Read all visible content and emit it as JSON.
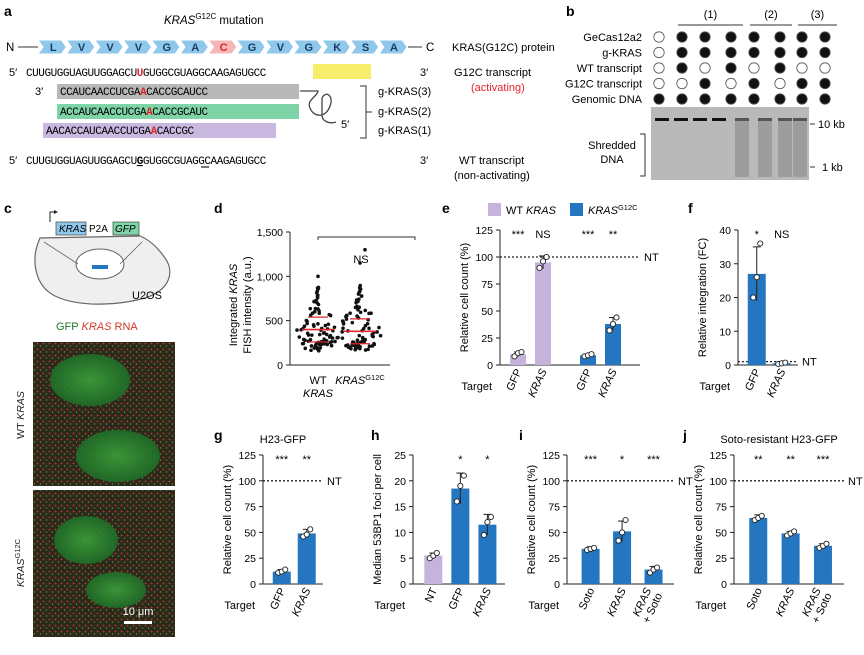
{
  "panel_labels": {
    "a": "a",
    "b": "b",
    "c": "c",
    "d": "d",
    "e": "e",
    "f": "f",
    "g": "g",
    "h": "h",
    "i": "i",
    "j": "j"
  },
  "panel_a": {
    "mutation_title": "KRAS",
    "mutation_sup": "G12C",
    "mutation_suffix": " mutation",
    "n_term": "N",
    "c_term": "C",
    "aa": [
      "L",
      "V",
      "V",
      "V",
      "G",
      "A",
      "C",
      "G",
      "V",
      "G",
      "K",
      "S",
      "A"
    ],
    "protein_label": "KRAS(G12C) protein",
    "prime5": "5′",
    "prime3": "3′",
    "seq_g12c_before": "CUUGUGGUAGUUGGAGCU",
    "seq_g12c_mut": "U",
    "seq_g12c_mid": "GUGGCGUAGG",
    "seq_g12c_pam": "CAAGAG",
    "seq_g12c_after": "UGCC",
    "g12c_label1": "G12C transcript",
    "g12c_label2": "(activating)",
    "g3_before": "CCAUCAACCUCGA",
    "g3_mut": "A",
    "g3_after": "CACCGCAUCC",
    "g2_before": "ACCAUCAACCUCGA",
    "g2_mut": "A",
    "g2_after": "CACCGCAUC",
    "g1_before": "AACACCAUCAACCUCGA",
    "g1_mut": "A",
    "g1_after": "CACCGC",
    "g3_label": "g-KRAS(3)",
    "g2_label": "g-KRAS(2)",
    "g1_label": "g-KRAS(1)",
    "seq_wt_before": "CUUGUGGUAGUUGGAGCU",
    "seq_wt_mut": "G",
    "seq_wt_after": "GUGGCGUAGGCAAGAGUGCC",
    "wt_label1": "WT transcript",
    "wt_label2": "(non-activating)"
  },
  "panel_b": {
    "group_labels": [
      "(1)",
      "(2)",
      "(3)"
    ],
    "rows": [
      {
        "label": "GeCas12a2",
        "fill": [
          0,
          1,
          1,
          1,
          1,
          1,
          1,
          1
        ]
      },
      {
        "label": "g-KRAS",
        "fill": [
          0,
          1,
          1,
          1,
          1,
          1,
          1,
          1
        ]
      },
      {
        "label": "WT transcript",
        "fill": [
          0,
          1,
          0,
          1,
          0,
          1,
          0,
          0
        ]
      },
      {
        "label": "G12C transcript",
        "fill": [
          0,
          0,
          1,
          0,
          1,
          0,
          1,
          1
        ]
      },
      {
        "label": "Genomic DNA",
        "fill": [
          1,
          1,
          1,
          1,
          1,
          1,
          1,
          1
        ]
      }
    ],
    "shredded1": "Shredded",
    "shredded2": "DNA",
    "kb10": "10 kb",
    "kb1": "1 kb"
  },
  "panel_c": {
    "construct_kras": "KRAS",
    "construct_p2a": "P2A",
    "construct_gfp": "GFP",
    "cell_label": "U2OS",
    "legend_gfp": "GFP",
    "legend_kras": "KRAS",
    "legend_rna": " RNA",
    "wt_label_a": "WT ",
    "wt_label_b": "KRAS",
    "g12c_label_a": "KRAS",
    "g12c_label_sup": "G12C",
    "scale": "10 μm"
  },
  "colors": {
    "wt": "#c5b3dc",
    "g12c": "#2476c0",
    "mut_red": "#e0252b",
    "pam_yellow": "#f6ee6a",
    "protein_blue": "#8fc8ea",
    "guide3": "#b8b8b8",
    "guide2": "#7ed3a7",
    "guide1": "#c9b8e0"
  },
  "panel_d": {
    "ylabel1": "Integrated KRAS",
    "ylabel2": "FISH intensity (a.u.)",
    "yticks": [
      "0",
      "500",
      "1,000",
      "1,500"
    ],
    "ymax": 1500,
    "cat1a": "WT",
    "cat1b": "KRAS",
    "cat2a": "KRAS",
    "cat2sup": "G12C",
    "sig": "NS",
    "means": [
      400,
      380
    ]
  },
  "chart_data": [
    {
      "panel": "e",
      "type": "bar",
      "ylabel": "Relative cell count (%)",
      "ylim": [
        0,
        125
      ],
      "yticks": [
        0,
        25,
        50,
        75,
        100,
        125
      ],
      "legend": [
        {
          "name": "WT KRAS",
          "color": "wt"
        },
        {
          "name": "KRASG12C",
          "color": "g12c"
        }
      ],
      "xlabel": "Target",
      "categories": [
        "GFP",
        "KRAS",
        "GFP",
        "KRAS"
      ],
      "values": [
        10,
        95,
        9,
        38
      ],
      "colors": [
        "wt",
        "wt",
        "g12c",
        "g12c"
      ],
      "points": [
        [
          8,
          11,
          12
        ],
        [
          90,
          96,
          100
        ],
        [
          8,
          9,
          10
        ],
        [
          32,
          38,
          44
        ]
      ],
      "errors": [
        2,
        6,
        1,
        6
      ],
      "sig": [
        "***",
        "NS",
        "***",
        "**"
      ],
      "nt": "NT",
      "nt_value": 100
    },
    {
      "panel": "f",
      "type": "bar",
      "ylabel": "Relative integration (FC)",
      "ylim": [
        0,
        40
      ],
      "yticks": [
        0,
        10,
        20,
        30,
        40
      ],
      "xlabel": "Target",
      "categories": [
        "GFP",
        "KRAS"
      ],
      "values": [
        27,
        0.5
      ],
      "colors": [
        "g12c",
        "g12c"
      ],
      "points": [
        [
          20,
          26,
          36
        ],
        [
          0.3,
          0.5,
          0.7
        ]
      ],
      "errors": [
        8,
        0.3
      ],
      "sig": [
        "*",
        "NS"
      ],
      "nt": "NT",
      "nt_value": 1
    },
    {
      "panel": "g",
      "type": "bar",
      "title": "H23-GFP",
      "ylabel": "Relative cell count (%)",
      "ylim": [
        0,
        125
      ],
      "yticks": [
        0,
        25,
        50,
        75,
        100,
        125
      ],
      "xlabel": "Target",
      "categories": [
        "GFP",
        "KRAS"
      ],
      "values": [
        12,
        49
      ],
      "colors": [
        "g12c",
        "g12c"
      ],
      "points": [
        [
          11,
          12,
          14
        ],
        [
          46,
          48,
          53
        ]
      ],
      "errors": [
        2,
        4
      ],
      "sig": [
        "***",
        "**"
      ],
      "nt": "NT",
      "nt_value": 100
    },
    {
      "panel": "h",
      "type": "bar",
      "ylabel": "Median 53BP1 foci per cell",
      "ylim": [
        0,
        25
      ],
      "yticks": [
        0,
        5,
        10,
        15,
        20,
        25
      ],
      "xlabel": "Target",
      "categories": [
        "NT",
        "GFP",
        "KRAS"
      ],
      "values": [
        5.5,
        18.5,
        11.5
      ],
      "colors": [
        "wt",
        "g12c",
        "g12c"
      ],
      "points": [
        [
          5,
          5.5,
          6
        ],
        [
          16,
          19,
          21
        ],
        [
          9.5,
          12,
          13
        ]
      ],
      "errors": [
        0.5,
        3,
        2
      ],
      "sig": [
        "",
        "*",
        "*"
      ]
    },
    {
      "panel": "i",
      "type": "bar",
      "ylabel": "Relative cell count (%)",
      "ylim": [
        0,
        125
      ],
      "yticks": [
        0,
        25,
        50,
        75,
        100,
        125
      ],
      "xlabel": "Target",
      "categories": [
        "Soto",
        "KRAS",
        "KRAS + Soto"
      ],
      "values": [
        34,
        51,
        14
      ],
      "colors": [
        "g12c",
        "g12c",
        "g12c"
      ],
      "points": [
        [
          33,
          34,
          35
        ],
        [
          42,
          50,
          62
        ],
        [
          11,
          14,
          16
        ]
      ],
      "errors": [
        2,
        10,
        3
      ],
      "sig": [
        "***",
        "*",
        "***"
      ],
      "nt": "NT",
      "nt_value": 100
    },
    {
      "panel": "j",
      "type": "bar",
      "title": "Soto-resistant H23-GFP",
      "ylabel": "Relative cell count (%)",
      "ylim": [
        0,
        125
      ],
      "yticks": [
        0,
        25,
        50,
        75,
        100,
        125
      ],
      "xlabel": "Target",
      "categories": [
        "Soto",
        "KRAS",
        "KRAS + Soto"
      ],
      "values": [
        64,
        49,
        37
      ],
      "colors": [
        "g12c",
        "g12c",
        "g12c"
      ],
      "points": [
        [
          62,
          64,
          66
        ],
        [
          47,
          49,
          51
        ],
        [
          35,
          37,
          39
        ]
      ],
      "errors": [
        3,
        2,
        2
      ],
      "sig": [
        "**",
        "**",
        "***"
      ],
      "nt": "NT",
      "nt_value": 100
    }
  ]
}
